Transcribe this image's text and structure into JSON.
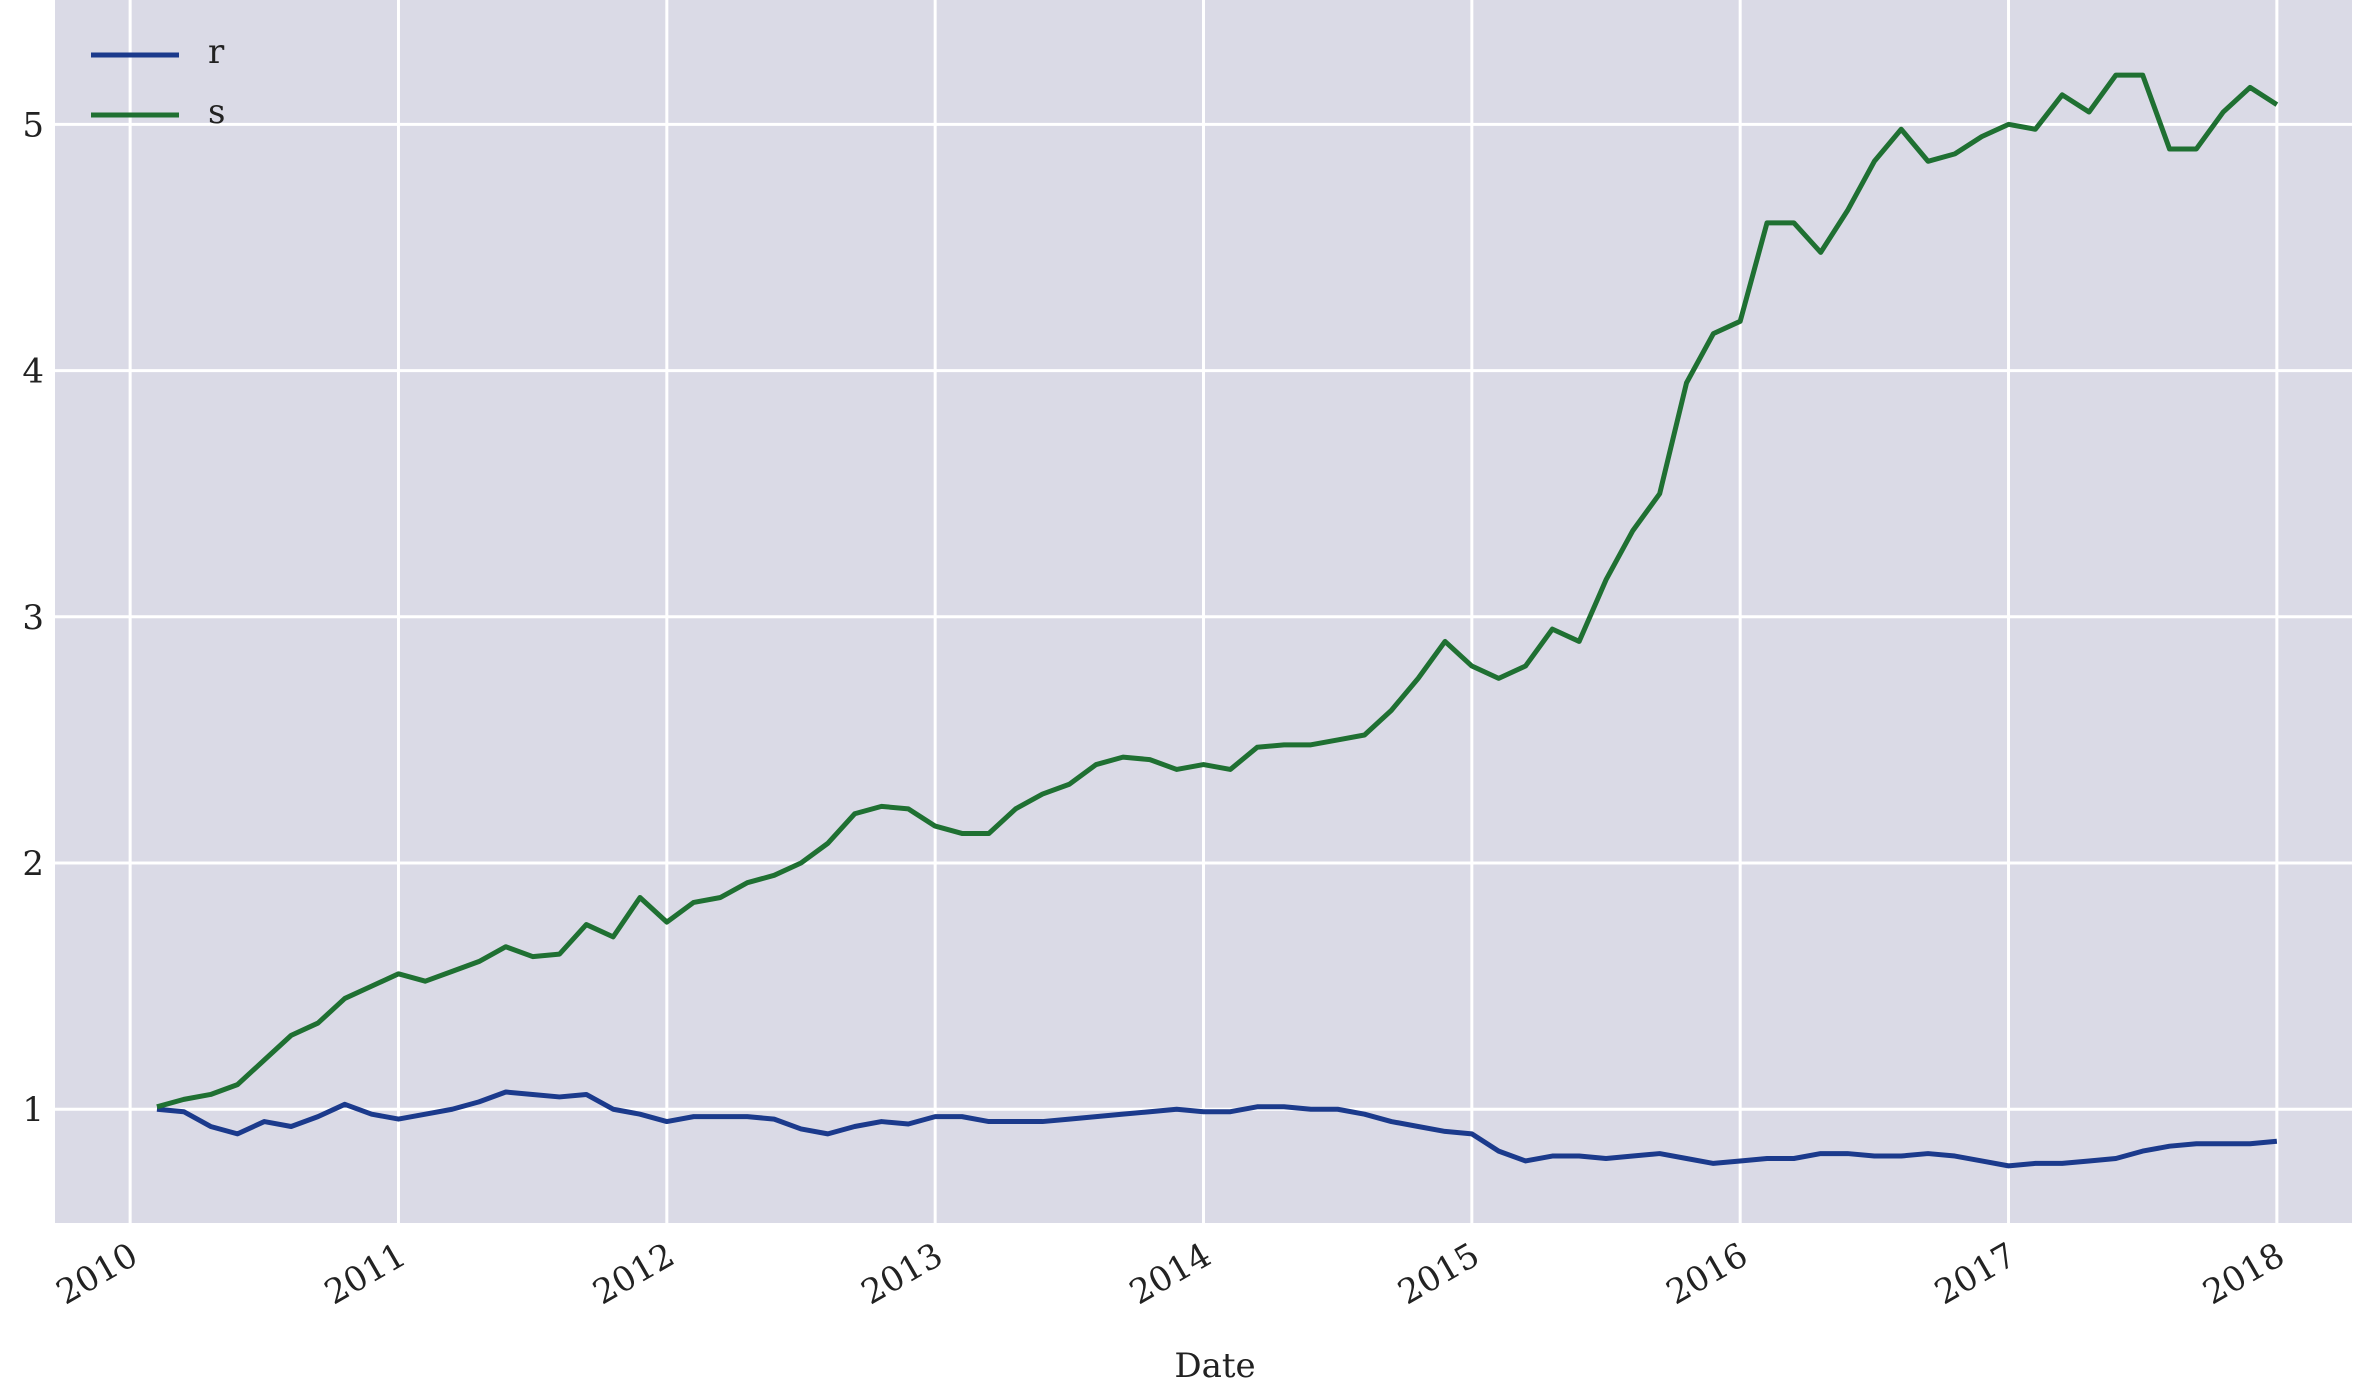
{
  "chart_data": {
    "type": "line",
    "xlabel": "Date",
    "x": [
      2010.1,
      2010.2,
      2010.3,
      2010.4,
      2010.5,
      2010.6,
      2010.7,
      2010.8,
      2010.9,
      2011.0,
      2011.1,
      2011.2,
      2011.3,
      2011.4,
      2011.5,
      2011.6,
      2011.7,
      2011.8,
      2011.9,
      2012.0,
      2012.1,
      2012.2,
      2012.3,
      2012.4,
      2012.5,
      2012.6,
      2012.7,
      2012.8,
      2012.9,
      2013.0,
      2013.1,
      2013.2,
      2013.3,
      2013.4,
      2013.5,
      2013.6,
      2013.7,
      2013.8,
      2013.9,
      2014.0,
      2014.1,
      2014.2,
      2014.3,
      2014.4,
      2014.5,
      2014.6,
      2014.7,
      2014.8,
      2014.9,
      2015.0,
      2015.1,
      2015.2,
      2015.3,
      2015.4,
      2015.5,
      2015.6,
      2015.7,
      2015.8,
      2015.9,
      2016.0,
      2016.1,
      2016.2,
      2016.3,
      2016.4,
      2016.5,
      2016.6,
      2016.7,
      2016.8,
      2016.9,
      2017.0,
      2017.1,
      2017.2,
      2017.3,
      2017.4,
      2017.5,
      2017.6,
      2017.7,
      2017.8,
      2017.9,
      2018.0
    ],
    "series": [
      {
        "name": "r",
        "color": "#1b3a8c",
        "values": [
          1.0,
          0.99,
          0.93,
          0.9,
          0.95,
          0.93,
          0.97,
          1.02,
          0.98,
          0.96,
          0.98,
          1.0,
          1.03,
          1.07,
          1.06,
          1.05,
          1.06,
          1.0,
          0.98,
          0.95,
          0.97,
          0.97,
          0.97,
          0.96,
          0.92,
          0.9,
          0.93,
          0.95,
          0.94,
          0.97,
          0.97,
          0.95,
          0.95,
          0.95,
          0.96,
          0.97,
          0.98,
          0.99,
          1.0,
          0.99,
          0.99,
          1.01,
          1.01,
          1.0,
          1.0,
          0.98,
          0.95,
          0.93,
          0.91,
          0.9,
          0.83,
          0.79,
          0.81,
          0.81,
          0.8,
          0.81,
          0.82,
          0.8,
          0.78,
          0.79,
          0.8,
          0.8,
          0.82,
          0.82,
          0.81,
          0.81,
          0.82,
          0.81,
          0.79,
          0.77,
          0.78,
          0.78,
          0.79,
          0.8,
          0.83,
          0.85,
          0.86,
          0.86,
          0.86,
          0.87
        ]
      },
      {
        "name": "s",
        "color": "#1f7032",
        "values": [
          1.01,
          1.04,
          1.06,
          1.1,
          1.2,
          1.3,
          1.35,
          1.45,
          1.5,
          1.55,
          1.52,
          1.56,
          1.6,
          1.66,
          1.62,
          1.63,
          1.75,
          1.7,
          1.86,
          1.76,
          1.84,
          1.86,
          1.92,
          1.95,
          2.0,
          2.08,
          2.2,
          2.23,
          2.22,
          2.15,
          2.12,
          2.12,
          2.22,
          2.28,
          2.32,
          2.4,
          2.43,
          2.42,
          2.38,
          2.4,
          2.38,
          2.47,
          2.48,
          2.48,
          2.5,
          2.52,
          2.62,
          2.75,
          2.9,
          2.8,
          2.75,
          2.8,
          2.95,
          2.9,
          3.15,
          3.35,
          3.5,
          3.95,
          4.15,
          4.2,
          4.6,
          4.6,
          4.48,
          4.65,
          4.85,
          4.98,
          4.85,
          4.88,
          4.95,
          5.0,
          4.98,
          5.12,
          5.05,
          5.2,
          5.2,
          4.9,
          4.9,
          5.05,
          5.15,
          5.08
        ]
      }
    ],
    "xlim": [
      2009.72,
      2018.28
    ],
    "xticks": [
      2010,
      2011,
      2012,
      2013,
      2014,
      2015,
      2016,
      2017,
      2018
    ],
    "ylim": [
      0.538,
      5.505
    ],
    "yticks": [
      1,
      2,
      3,
      4,
      5
    ],
    "grid": true,
    "legend": "upper left"
  }
}
